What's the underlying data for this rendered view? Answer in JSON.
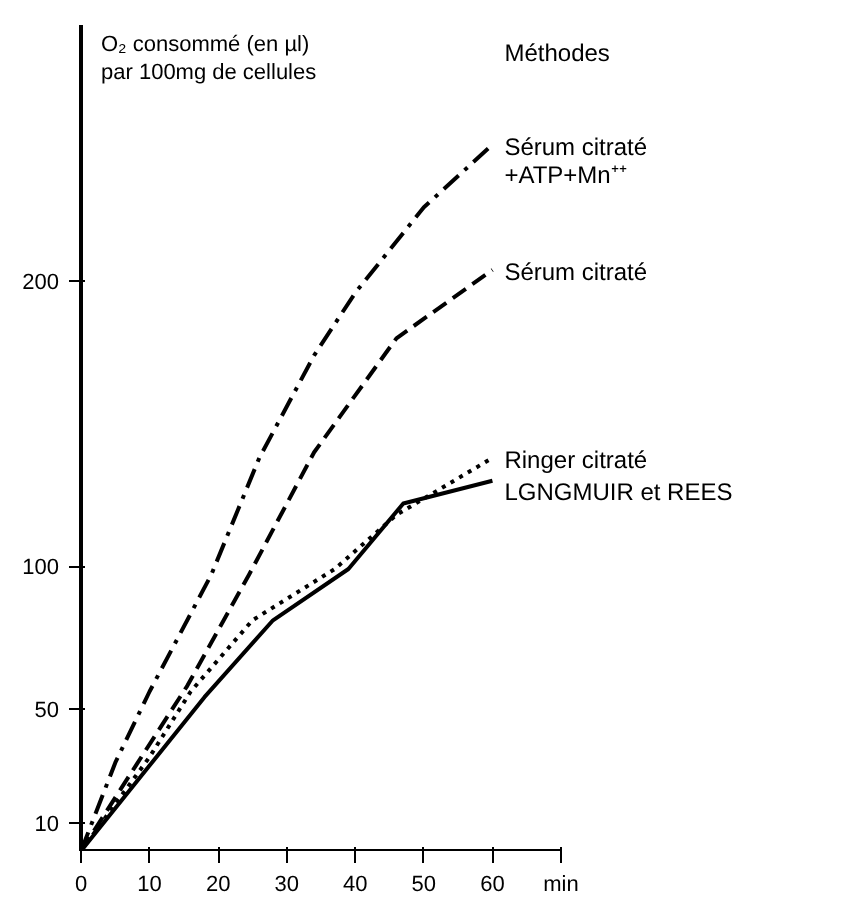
{
  "chart_data": {
    "type": "line",
    "ylabel": "O₂ consommé (en µl)\npar 100mg de cellules",
    "xlabel": "min",
    "legend_title": "Méthodes",
    "legend": false,
    "grid": false,
    "xlim": [
      0,
      70
    ],
    "ylim": [
      0,
      290
    ],
    "xticks": [
      0,
      10,
      20,
      30,
      40,
      50,
      60
    ],
    "yticks": [
      10,
      50,
      100,
      200
    ],
    "series": [
      {
        "name": "Sérum citraté\n+ATP+Mn⁺⁺",
        "color": "#000000",
        "line_style": "dashdot",
        "x": [
          0,
          5,
          10,
          19,
          26,
          34,
          40,
          50,
          60
        ],
        "values": [
          0,
          31,
          56,
          97,
          138,
          174,
          196,
          226,
          248
        ]
      },
      {
        "name": "Sérum citraté",
        "color": "#000000",
        "line_style": "dashed",
        "x": [
          0,
          8,
          15.5,
          24.5,
          34,
          46,
          60
        ],
        "values": [
          0,
          30,
          58,
          97,
          140,
          180,
          204
        ]
      },
      {
        "name": "Ringer citraté",
        "color": "#000000",
        "line_style": "dotted",
        "x": [
          0,
          10,
          16,
          25,
          37,
          46,
          60
        ],
        "values": [
          0,
          33,
          56,
          81,
          99,
          118,
          138
        ]
      },
      {
        "name": "LGNGMUIR et REES",
        "color": "#000000",
        "line_style": "solid",
        "x": [
          0,
          10,
          18,
          28,
          39,
          47,
          60
        ],
        "values": [
          0,
          30,
          54,
          81,
          99,
          122,
          130
        ]
      }
    ]
  }
}
